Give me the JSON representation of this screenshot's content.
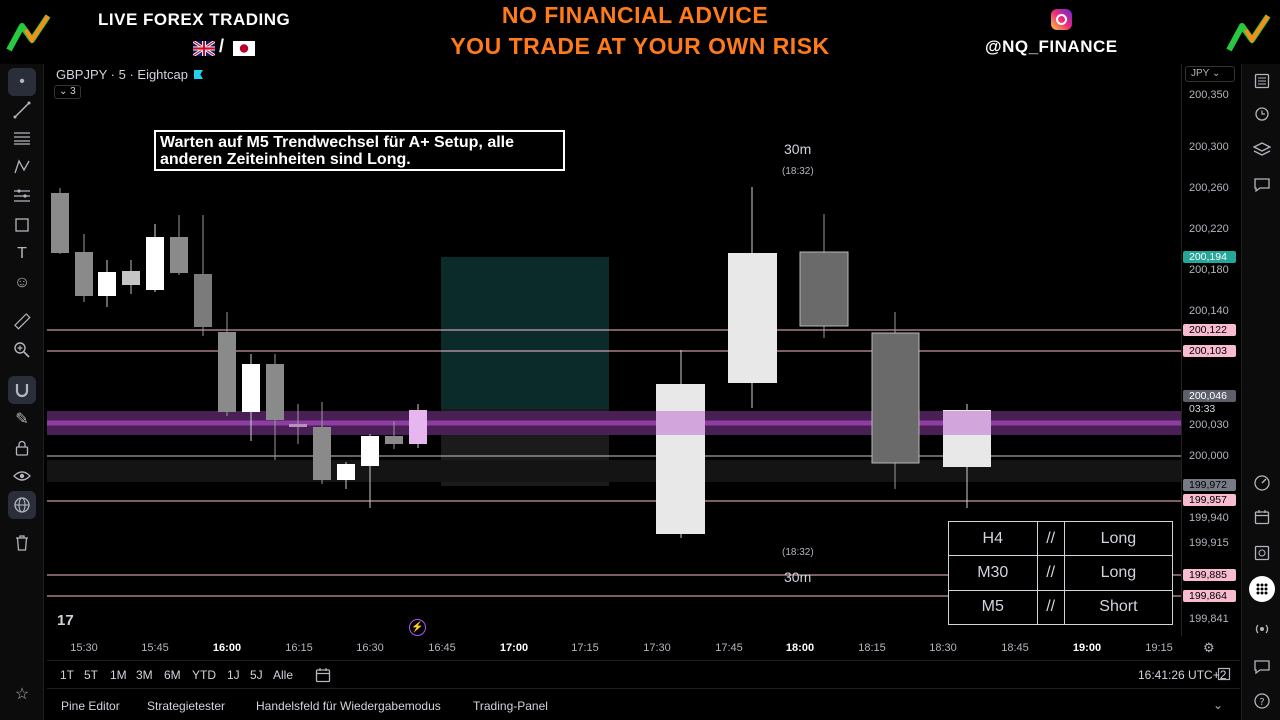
{
  "banner": {
    "left_title": "LIVE FOREX TRADING",
    "flag_sep": "/",
    "warning_line1": "NO FINANCIAL ADVICE",
    "warning_line2": "YOU TRADE AT YOUR OWN RISK",
    "handle": "@NQ_FINANCE"
  },
  "chart": {
    "symbol": "GBPJPY · 5 · Eightcap",
    "collapsed_count": "3",
    "note": "Warten auf M5 Trendwechsel für A+ Setup, alle anderen Zeiteinheiten sind Long.",
    "upper_label": "30m",
    "upper_time": "(18:32)",
    "lower_time": "(18:32)",
    "lower_label": "30m",
    "tv_logo": "17",
    "table": [
      [
        "H4",
        "//",
        "Long"
      ],
      [
        "M30",
        "//",
        "Long"
      ],
      [
        "M5",
        "//",
        "Short"
      ]
    ]
  },
  "price_scale": {
    "currency": "JPY",
    "labels": [
      "200,350",
      "200,300",
      "200,260",
      "200,220",
      "200,180",
      "200,140",
      "200,030",
      "200,000",
      "199,940",
      "199,915",
      "199,841"
    ],
    "tags": [
      {
        "text": "200,194",
        "bg": "#26a69a",
        "fg": "#ffffff"
      },
      {
        "text": "200,122",
        "bg": "#f8bbd0",
        "fg": "#000000"
      },
      {
        "text": "200,103",
        "bg": "#f8bbd0",
        "fg": "#000000"
      },
      {
        "text": "200,046",
        "bg": "#5d606b",
        "fg": "#ffffff"
      },
      {
        "text": "03:33",
        "bg": "#000000",
        "fg": "#d1d4dc"
      },
      {
        "text": "199,972",
        "bg": "#787b86",
        "fg": "#000000"
      },
      {
        "text": "199,957",
        "bg": "#f8bbd0",
        "fg": "#000000"
      },
      {
        "text": "199,885",
        "bg": "#f8bbd0",
        "fg": "#000000"
      },
      {
        "text": "199,864",
        "bg": "#f8bbd0",
        "fg": "#000000"
      }
    ]
  },
  "time_axis": [
    "15:30",
    "15:45",
    "16:00",
    "16:15",
    "16:30",
    "16:45",
    "17:00",
    "17:15",
    "17:30",
    "17:45",
    "18:00",
    "18:15",
    "18:30",
    "18:45",
    "19:00",
    "19:15"
  ],
  "range_bar": {
    "ranges": [
      "1T",
      "5T",
      "1M",
      "3M",
      "6M",
      "YTD",
      "1J",
      "5J",
      "Alle"
    ],
    "clock": "16:41:26 UTC+2"
  },
  "bottom_tabs": [
    "Pine Editor",
    "Strategietester",
    "Handelsfeld für Wiedergabemodus",
    "Trading-Panel"
  ]
}
